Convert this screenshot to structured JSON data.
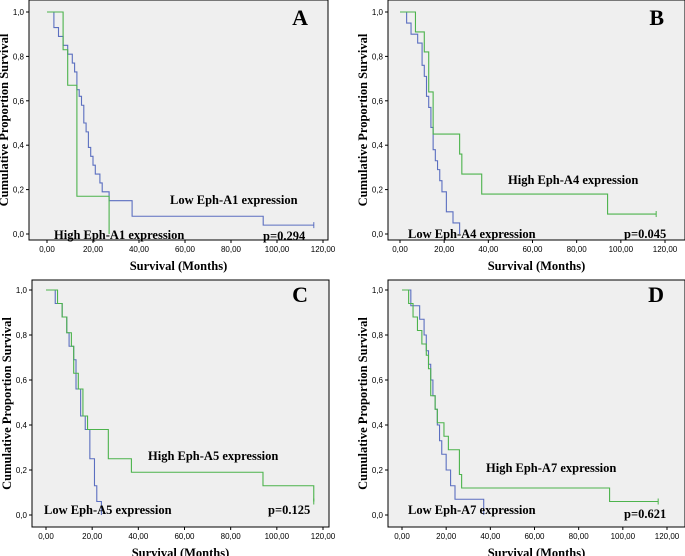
{
  "chart_data": [
    {
      "type": "line",
      "panel": "A",
      "xlabel": "Survival (Months)",
      "ylabel": "Cumulative Proportion Survival",
      "xlim": [
        0,
        120
      ],
      "ylim": [
        0,
        1
      ],
      "xticks": [
        "0,00",
        "20,00",
        "40,00",
        "60,00",
        "80,00",
        "100,00",
        "120,00"
      ],
      "yticks": [
        "0,0",
        "0,2",
        "0,4",
        "0,6",
        "0,8",
        "1,0"
      ],
      "pvalue": "p=0.294",
      "series": [
        {
          "name": "Low Eph-A1 expression",
          "color": "#5b6fc0",
          "x": [
            0,
            3,
            5,
            7,
            9,
            11,
            12,
            13,
            14,
            15,
            16,
            17,
            18,
            19,
            20,
            21,
            23,
            24,
            27,
            37,
            94,
            116
          ],
          "y": [
            1.0,
            0.93,
            0.89,
            0.85,
            0.81,
            0.77,
            0.73,
            0.65,
            0.62,
            0.58,
            0.5,
            0.46,
            0.39,
            0.35,
            0.31,
            0.27,
            0.23,
            0.19,
            0.15,
            0.08,
            0.04,
            0.04
          ]
        },
        {
          "name": "High Eph-A1 expression",
          "color": "#4cb34c",
          "x": [
            0,
            7,
            9,
            13,
            27
          ],
          "y": [
            1.0,
            0.83,
            0.67,
            0.17,
            0.0
          ]
        }
      ]
    },
    {
      "type": "line",
      "panel": "B",
      "xlabel": "Survival (Months)",
      "ylabel": "Cumulative Proportion Survival",
      "xlim": [
        0,
        120
      ],
      "ylim": [
        0,
        1
      ],
      "xticks": [
        "0,00",
        "20,00",
        "40,00",
        "60,00",
        "80,00",
        "100,00",
        "120,00"
      ],
      "yticks": [
        "0,0",
        "0,2",
        "0,4",
        "0,6",
        "0,8",
        "1,0"
      ],
      "pvalue": "p=0.045",
      "series": [
        {
          "name": "Low Eph-A4 expression",
          "color": "#5b6fc0",
          "x": [
            0,
            3,
            5,
            8,
            10,
            11,
            12,
            13,
            14,
            15,
            16,
            17,
            18,
            19,
            21,
            24,
            27
          ],
          "y": [
            1.0,
            0.95,
            0.9,
            0.86,
            0.76,
            0.71,
            0.62,
            0.57,
            0.48,
            0.38,
            0.33,
            0.29,
            0.24,
            0.19,
            0.1,
            0.05,
            0.0
          ]
        },
        {
          "name": "High Eph-A4 expression",
          "color": "#4cb34c",
          "x": [
            0,
            7,
            11,
            13,
            15,
            27,
            28,
            37,
            94,
            116
          ],
          "y": [
            1.0,
            0.91,
            0.82,
            0.64,
            0.45,
            0.36,
            0.27,
            0.18,
            0.09,
            0.09
          ]
        }
      ]
    },
    {
      "type": "line",
      "panel": "C",
      "xlabel": "Survival (Months)",
      "ylabel": "Cumulative Proportion Survival",
      "xlim": [
        0,
        120
      ],
      "ylim": [
        0,
        1
      ],
      "xticks": [
        "0,00",
        "20,00",
        "40,00",
        "60,00",
        "80,00",
        "100,00",
        "120,00"
      ],
      "yticks": [
        "0,0",
        "0,2",
        "0,4",
        "0,6",
        "0,8",
        "1,0"
      ],
      "pvalue": "p=0.125",
      "series": [
        {
          "name": "Low Eph-A5 expression",
          "color": "#5b6fc0",
          "x": [
            0,
            4,
            7,
            9,
            10,
            12,
            13,
            15,
            17,
            19,
            21,
            22,
            24
          ],
          "y": [
            1.0,
            0.94,
            0.88,
            0.81,
            0.75,
            0.69,
            0.56,
            0.44,
            0.38,
            0.25,
            0.13,
            0.06,
            0.0
          ]
        },
        {
          "name": "High Eph-A5 expression",
          "color": "#4cb34c",
          "x": [
            0,
            5,
            7,
            9,
            11,
            12,
            14,
            16,
            18,
            27,
            37,
            94,
            116
          ],
          "y": [
            1.0,
            0.94,
            0.88,
            0.81,
            0.75,
            0.63,
            0.56,
            0.44,
            0.38,
            0.25,
            0.19,
            0.13,
            0.06
          ]
        }
      ]
    },
    {
      "type": "line",
      "panel": "D",
      "xlabel": "Survival (Months)",
      "ylabel": "Cumulative Proportion Survival",
      "xlim": [
        0,
        120
      ],
      "ylim": [
        0,
        1
      ],
      "xticks": [
        "0,00",
        "20,00",
        "40,00",
        "60,00",
        "80,00",
        "100,00",
        "120,00"
      ],
      "yticks": [
        "0,0",
        "0,2",
        "0,4",
        "0,6",
        "0,8",
        "1,0"
      ],
      "pvalue": "p=0.621",
      "series": [
        {
          "name": "Low Eph-A7 expression",
          "color": "#5b6fc0",
          "x": [
            0,
            4,
            8,
            10,
            11,
            12,
            13,
            14,
            15,
            16,
            17,
            18,
            20,
            22,
            24,
            27,
            37
          ],
          "y": [
            1.0,
            0.93,
            0.87,
            0.8,
            0.73,
            0.67,
            0.6,
            0.53,
            0.47,
            0.4,
            0.33,
            0.27,
            0.2,
            0.13,
            0.07,
            0.07,
            0.0
          ]
        },
        {
          "name": "High Eph-A7 expression",
          "color": "#4cb34c",
          "x": [
            0,
            3,
            5,
            7,
            9,
            11,
            12,
            13,
            15,
            16,
            19,
            21,
            26,
            27,
            37,
            94,
            116
          ],
          "y": [
            1.0,
            0.94,
            0.88,
            0.82,
            0.76,
            0.71,
            0.65,
            0.53,
            0.47,
            0.41,
            0.35,
            0.29,
            0.18,
            0.12,
            0.12,
            0.06,
            0.06
          ]
        }
      ]
    }
  ]
}
